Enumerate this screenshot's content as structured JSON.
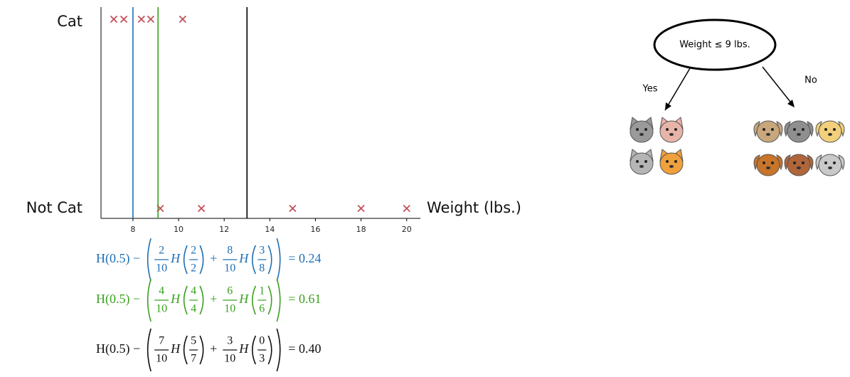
{
  "chart_data": {
    "type": "scatter",
    "xlabel": "Weight (lbs.)",
    "xlim": [
      6.6,
      20.6
    ],
    "xticks": [
      8,
      10,
      12,
      14,
      16,
      18,
      20
    ],
    "series": [
      {
        "name": "Cat",
        "color": "#c4505a",
        "x": [
          7.16,
          7.6,
          8.37,
          8.78,
          10.18
        ]
      },
      {
        "name": "Not Cat",
        "color": "#c4505a",
        "x": [
          9.2,
          11,
          15,
          18,
          20
        ]
      }
    ],
    "thresholds": [
      {
        "value": 8,
        "color": "#1f6fb4"
      },
      {
        "value": 9.1,
        "color": "#3aa01e"
      },
      {
        "value": 13,
        "color": "#000000"
      }
    ]
  },
  "formulas": [
    {
      "color": "#1f6fb4",
      "prefix": "H(0.5) −",
      "func": "H",
      "op": "+",
      "fractions": [
        [
          "2",
          "10"
        ],
        [
          "2",
          "2"
        ],
        [
          "8",
          "10"
        ],
        [
          "3",
          "8"
        ]
      ],
      "result": "= 0.24"
    },
    {
      "color": "#3aa01e",
      "prefix": "H(0.5) −",
      "func": "H",
      "op": "+",
      "fractions": [
        [
          "4",
          "10"
        ],
        [
          "4",
          "4"
        ],
        [
          "6",
          "10"
        ],
        [
          "1",
          "6"
        ]
      ],
      "result": "= 0.61"
    },
    {
      "color": "#111111",
      "prefix": "H(0.5) −",
      "func": "H",
      "op": "+",
      "fractions": [
        [
          "7",
          "10"
        ],
        [
          "5",
          "7"
        ],
        [
          "3",
          "10"
        ],
        [
          "0",
          "3"
        ]
      ],
      "result": "= 0.40"
    }
  ],
  "tree": {
    "root": "Weight ≤ 9 lbs.",
    "yes": "Yes",
    "no": "No"
  }
}
